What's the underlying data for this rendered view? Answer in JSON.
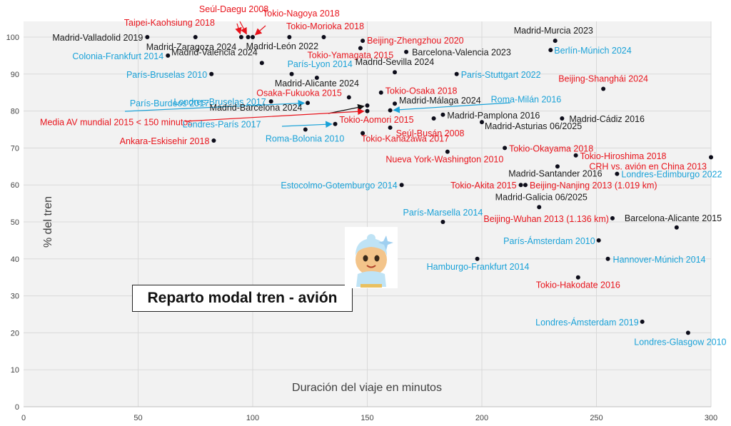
{
  "chart_data": {
    "type": "scatter",
    "title": "Reparto modal tren - avión",
    "xlabel": "Duración del viaje en minutos",
    "ylabel": "% del tren",
    "xlim": [
      0,
      300
    ],
    "ylim": [
      0,
      100
    ],
    "x_ticks": [
      "0",
      "50",
      "100",
      "150",
      "200",
      "250",
      "300"
    ],
    "y_ticks": [
      "0",
      "10",
      "20",
      "30",
      "40",
      "50",
      "60",
      "70",
      "80",
      "90",
      "100"
    ],
    "grid": true,
    "background": "#f2f2f2",
    "colors": {
      "black": "#1a1a1a",
      "red": "#e8141c",
      "blue": "#1aa2d8",
      "arrow_red": "#e8141c",
      "arrow_blue": "#1aa2d8"
    },
    "points": [
      {
        "label": "Madrid-Valladolid 2019",
        "x": 54,
        "y": 100,
        "c": "black"
      },
      {
        "label": "Madrid-Zaragoza 2024",
        "x": 75,
        "y": 100,
        "c": "black"
      },
      {
        "label": "Colonia-Frankfurt 2014",
        "x": 63,
        "y": 95,
        "c": "blue"
      },
      {
        "label": "París-Bruselas 2010",
        "x": 82,
        "y": 90,
        "c": "blue"
      },
      {
        "label": "Taipei-Kaohsiung 2018",
        "x": 95,
        "y": 100,
        "c": "red"
      },
      {
        "label": "Seúl-Daegu 2008",
        "x": 98,
        "y": 100,
        "c": "red"
      },
      {
        "label": "Tokio-Nagoya 2018",
        "x": 100,
        "y": 100,
        "c": "red"
      },
      {
        "label": "Tokio-Morioka 2018",
        "x": 131,
        "y": 100,
        "c": "red"
      },
      {
        "label": "Madrid-León 2022",
        "x": 116,
        "y": 100,
        "c": "black"
      },
      {
        "label": "Madrid-Valencia 2024",
        "x": 104,
        "y": 93,
        "c": "black"
      },
      {
        "label": "París-Lyon 2014",
        "x": 117,
        "y": 90,
        "c": "blue"
      },
      {
        "label": "Beijing-Zhengzhou 2020",
        "x": 148,
        "y": 99,
        "c": "red"
      },
      {
        "label": "Tokio-Yamagata 2015",
        "x": 147,
        "y": 97,
        "c": "red"
      },
      {
        "label": "Barcelona-Valencia 2023",
        "x": 167,
        "y": 96,
        "c": "black"
      },
      {
        "label": "Madrid-Sevilla 2024",
        "x": 162,
        "y": 90.5,
        "c": "black"
      },
      {
        "label": "Madrid-Alicante 2024",
        "x": 128,
        "y": 89,
        "c": "black"
      },
      {
        "label": "Madrid-Murcia 2023",
        "x": 232,
        "y": 99,
        "c": "black"
      },
      {
        "label": "Berlín-Múnich 2024",
        "x": 230,
        "y": 96.5,
        "c": "blue"
      },
      {
        "label": "París-Stuttgart 2022",
        "x": 189,
        "y": 90,
        "c": "blue"
      },
      {
        "label": "Beijing-Shanghái 2024",
        "x": 253,
        "y": 86,
        "c": "red"
      },
      {
        "label": "Tokio-Osaka 2018",
        "x": 156,
        "y": 85,
        "c": "red"
      },
      {
        "label": "Osaka-Fukuoka 2015",
        "x": 142,
        "y": 83.7,
        "c": "red"
      },
      {
        "label": "Londres-Bruselas 2017",
        "x": 108,
        "y": 82.6,
        "c": "blue"
      },
      {
        "label": "París-Burdeos 2017",
        "x": 124,
        "y": 82.2,
        "c": "blue"
      },
      {
        "label": "Madrid-Málaga 2024",
        "x": 162,
        "y": 82,
        "c": "black"
      },
      {
        "label": "Roma-Milán 2016",
        "x": 160,
        "y": 80.2,
        "c": "blue"
      },
      {
        "label": "Madrid-Barcelona 2024",
        "x": 150,
        "y": 81.5,
        "c": "black"
      },
      {
        "label": "Media AV mundial 2015 < 150 minutos",
        "x": 150,
        "y": 80,
        "c": "red"
      },
      {
        "label": "Madrid-Pamplona 2016",
        "x": 183,
        "y": 79,
        "c": "black"
      },
      {
        "label": "Tokio-Aomori 2015",
        "x": 179,
        "y": 78,
        "c": "red"
      },
      {
        "label": "Madrid-Asturias 06/2025",
        "x": 200,
        "y": 77,
        "c": "black"
      },
      {
        "label": "Madrid-Cádiz 2016",
        "x": 235,
        "y": 78,
        "c": "black"
      },
      {
        "label": "Londres-París 2017",
        "x": 136,
        "y": 76.5,
        "c": "blue"
      },
      {
        "label": "Roma-Bolonia 2010",
        "x": 123,
        "y": 75,
        "c": "blue"
      },
      {
        "label": "Seúl-Busán 2008",
        "x": 160,
        "y": 75.5,
        "c": "red"
      },
      {
        "label": "Tokio-Kanazawa 2017",
        "x": 148,
        "y": 74,
        "c": "red"
      },
      {
        "label": "Ankara-Eskisehir 2018",
        "x": 83,
        "y": 72,
        "c": "red"
      },
      {
        "label": "Tokio-Okayama 2018",
        "x": 210,
        "y": 70,
        "c": "red"
      },
      {
        "label": "Tokio-Hiroshima 2018",
        "x": 241,
        "y": 68,
        "c": "red"
      },
      {
        "label": "CRH vs. avión en China 2013",
        "x": 300,
        "y": 67.5,
        "c": "red"
      },
      {
        "label": "Nueva York-Washington 2010",
        "x": 185,
        "y": 69,
        "c": "red"
      },
      {
        "label": "Madrid-Santander 2016",
        "x": 233,
        "y": 65,
        "c": "black"
      },
      {
        "label": "Londres-Edimburgo 2022",
        "x": 259,
        "y": 63,
        "c": "blue"
      },
      {
        "label": "Tokio-Akita 2015",
        "x": 217,
        "y": 60,
        "c": "red"
      },
      {
        "label": "Beijing-Nanjing 2013 (1.019 km)",
        "x": 219,
        "y": 60,
        "c": "red"
      },
      {
        "label": "Estocolmo-Gotemburgo 2014",
        "x": 165,
        "y": 60,
        "c": "blue"
      },
      {
        "label": "Madrid-Galicia 06/2025",
        "x": 225,
        "y": 54,
        "c": "black"
      },
      {
        "label": "Barcelona-Alicante 2015",
        "x": 285,
        "y": 48.5,
        "c": "black"
      },
      {
        "label": "Beijing-Wuhan 2013 (1.136 km)",
        "x": 257,
        "y": 51,
        "c": "red"
      },
      {
        "label": "París-Marsella 2014",
        "x": 183,
        "y": 50,
        "c": "blue"
      },
      {
        "label": "París-Ámsterdam 2010",
        "x": 251,
        "y": 45,
        "c": "blue"
      },
      {
        "label": "Hannover-Múnich 2014",
        "x": 255,
        "y": 40,
        "c": "blue"
      },
      {
        "label": "Hamburgo-Frankfurt 2014",
        "x": 198,
        "y": 40,
        "c": "blue"
      },
      {
        "label": "Tokio-Hakodate 2016",
        "x": 242,
        "y": 35,
        "c": "red"
      },
      {
        "label": "Londres-Ámsterdam 2019",
        "x": 270,
        "y": 23,
        "c": "blue"
      },
      {
        "label": "Londres-Glasgow 2010",
        "x": 290,
        "y": 20,
        "c": "blue"
      }
    ]
  }
}
